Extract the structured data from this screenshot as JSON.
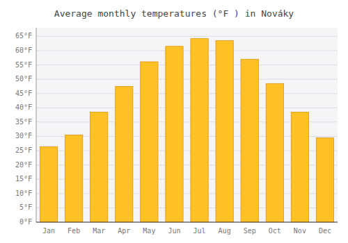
{
  "chart_data": {
    "type": "bar",
    "title": "Average monthly temperatures (°F ) in Nováky",
    "categories": [
      "Jan",
      "Feb",
      "Mar",
      "Apr",
      "May",
      "Jun",
      "Jul",
      "Aug",
      "Sep",
      "Oct",
      "Nov",
      "Dec"
    ],
    "values": [
      26.4,
      30.5,
      38.5,
      47.5,
      56.1,
      61.5,
      64.2,
      63.5,
      57.0,
      48.5,
      38.5,
      29.5
    ],
    "color": "#FFC125",
    "ylim": [
      0,
      68
    ],
    "yticks": [
      {
        "value": 0,
        "label": "0°F"
      },
      {
        "value": 5,
        "label": "5°F"
      },
      {
        "value": 10,
        "label": "10°F"
      },
      {
        "value": 15,
        "label": "15°F"
      },
      {
        "value": 20,
        "label": "20°F"
      },
      {
        "value": 25,
        "label": "25°F"
      },
      {
        "value": 30,
        "label": "30°F"
      },
      {
        "value": 35,
        "label": "35°F"
      },
      {
        "value": 40,
        "label": "40°F"
      },
      {
        "value": 45,
        "label": "45°F"
      },
      {
        "value": 50,
        "label": "50°F"
      },
      {
        "value": 55,
        "label": "55°F"
      },
      {
        "value": 60,
        "label": "60°F"
      },
      {
        "value": 65,
        "label": "65°F"
      }
    ],
    "grid": true
  }
}
